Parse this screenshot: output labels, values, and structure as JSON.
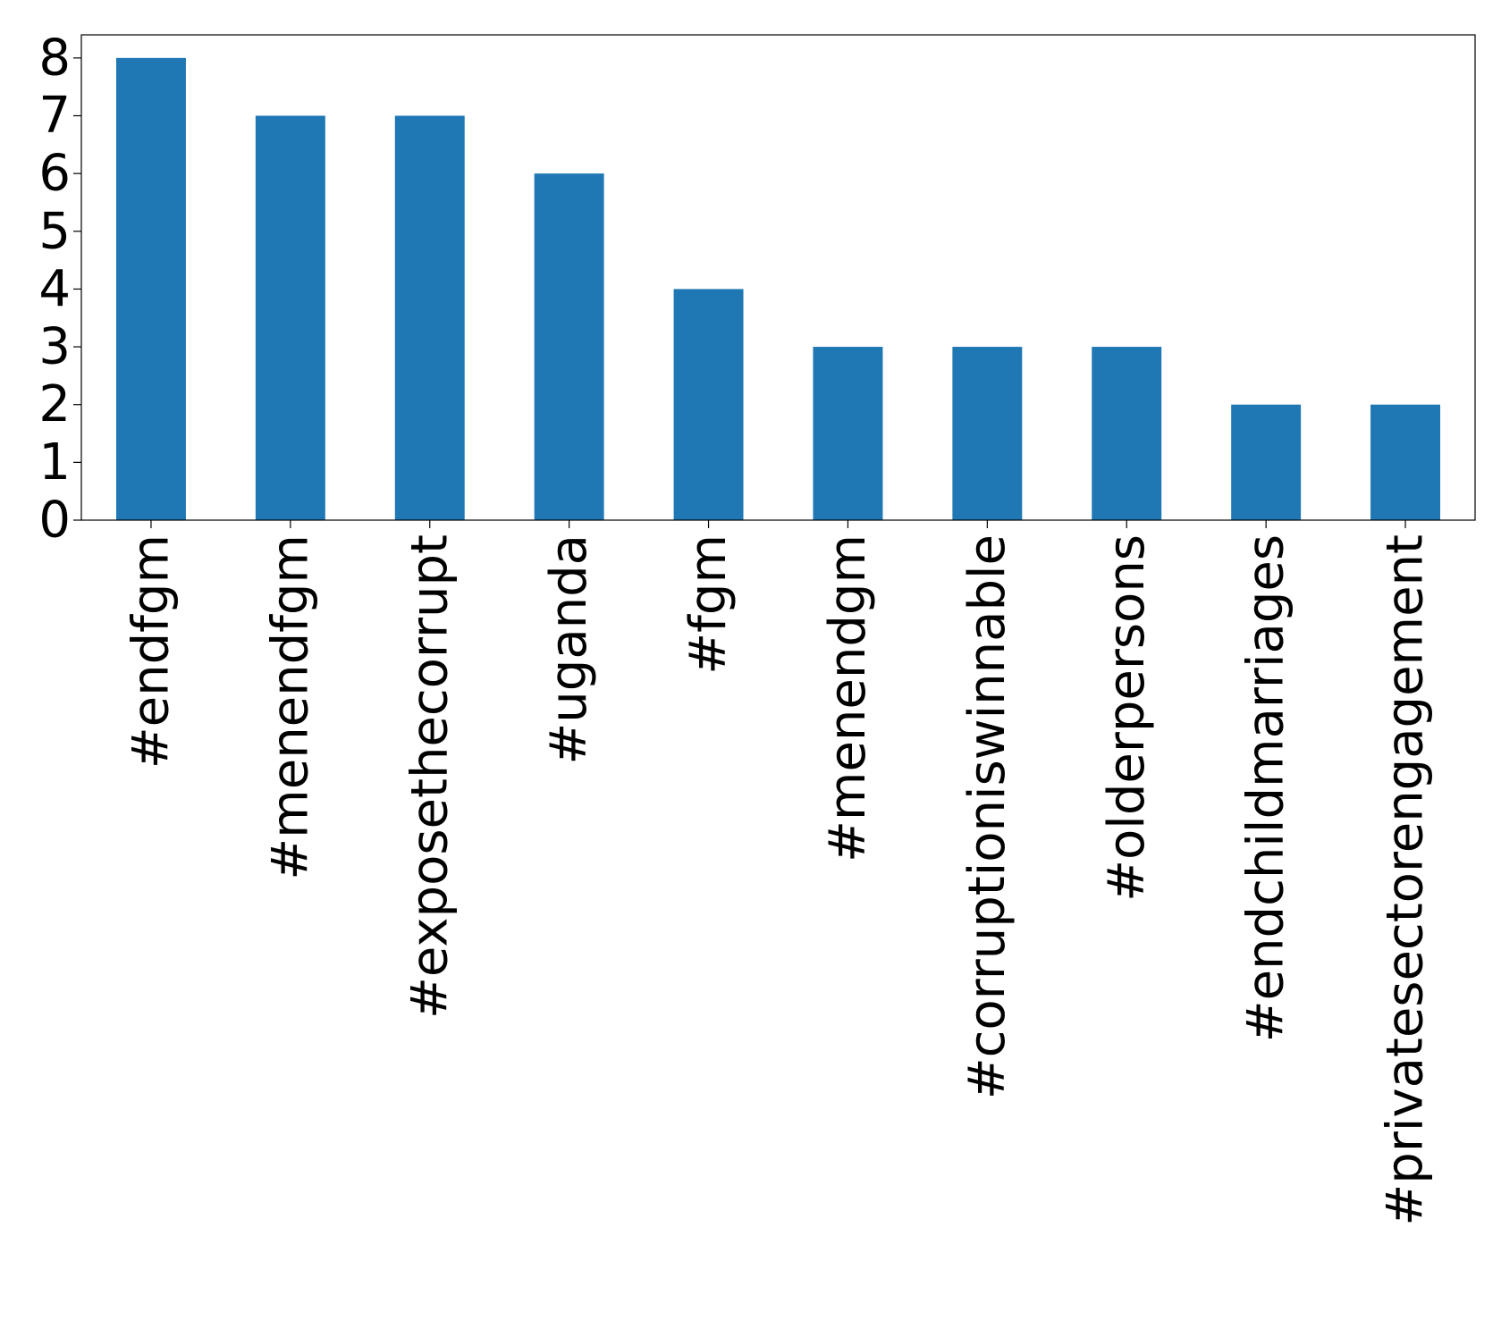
{
  "chart_data": {
    "type": "bar",
    "title": "",
    "xlabel": "",
    "ylabel": "",
    "categories": [
      "#endfgm",
      "#menendfgm",
      "#exposethecorrupt",
      "#uganda",
      "#fgm",
      "#menendgm",
      "#corruptioniswinnable",
      "#olderpersons",
      "#endchildmarriages",
      "#privatesectorengagement"
    ],
    "values": [
      8,
      7,
      7,
      6,
      4,
      3,
      3,
      3,
      2,
      2
    ],
    "ylim": [
      0,
      8.4
    ],
    "yticks": [
      0,
      1,
      2,
      3,
      4,
      5,
      6,
      7,
      8
    ],
    "bar_color": "#1f77b4",
    "grid": false,
    "legend": "none"
  }
}
